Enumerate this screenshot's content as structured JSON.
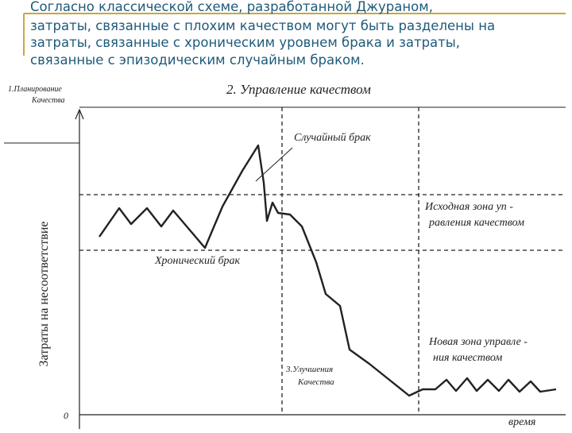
{
  "header": {
    "lines": [
      "Согласно классической схеме, разработанной Джураном,",
      "затраты, связанные с плохим качеством могут быть разделены на",
      "затраты, связанные с хроническим уровнем брака и затраты,",
      "связанные с эпизодическим случайным браком."
    ]
  },
  "diagram": {
    "y_axis_label": "Затраты на несоответствие",
    "x_axis_label": "время",
    "origin": "0",
    "stages": {
      "planning": [
        "1.Планирование",
        "Качества"
      ],
      "control": "2. Управление качеством",
      "improvement": [
        "3.Улучшения",
        "Качества"
      ]
    },
    "annotations": {
      "sporadic": "Случайный брак",
      "chronic": "Хронический брак",
      "original_zone": [
        "Исходная зона уп -",
        "равления качеством"
      ],
      "new_zone": [
        "Новая зона управле -",
        "ния качеством"
      ]
    }
  }
}
